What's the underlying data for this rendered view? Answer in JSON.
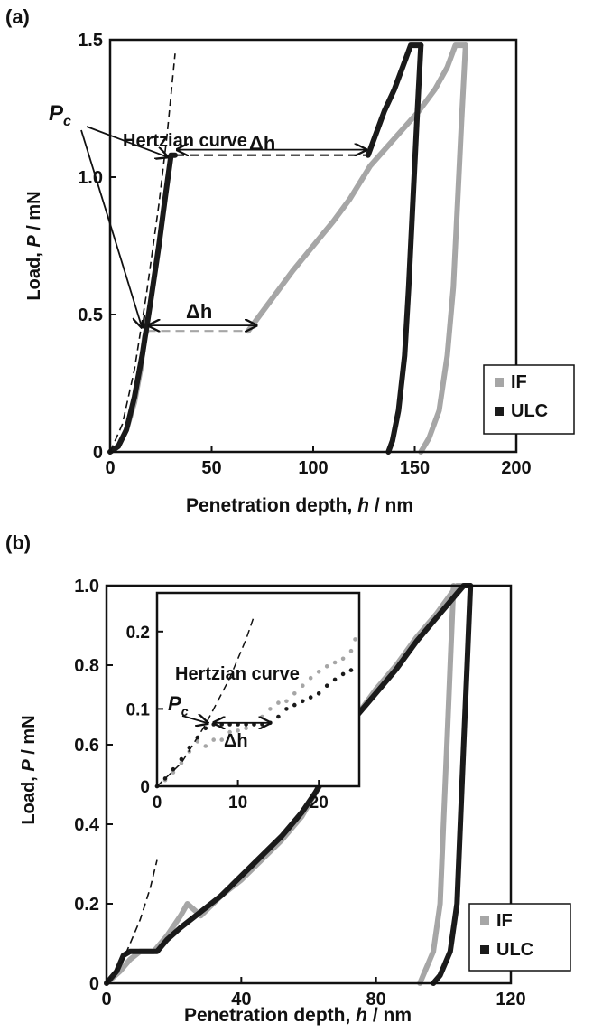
{
  "chart_data": [
    {
      "panel_label": "(a)",
      "type": "scatter",
      "xlabel_parts": [
        "Penetration depth, ",
        "h",
        " / nm"
      ],
      "ylabel_parts": [
        "Load, ",
        "P",
        " / mN"
      ],
      "xlim": [
        0,
        200
      ],
      "ylim": [
        0,
        1.5
      ],
      "x_ticks": [
        0,
        50,
        100,
        150,
        200
      ],
      "x_tick_labels": [
        "0",
        "50",
        "100",
        "150",
        "200"
      ],
      "y_ticks": [
        0,
        0.5,
        1.0,
        1.5
      ],
      "y_tick_labels": [
        "0",
        "0.5",
        "1.0",
        "1.5"
      ],
      "grid": false,
      "legend_position": "bottom-right",
      "series": [
        {
          "name": "IF",
          "color": "#a6a6a6",
          "segments": [
            [
              [
                0,
                0
              ],
              [
                4,
                0.02
              ],
              [
                8,
                0.08
              ],
              [
                12,
                0.18
              ],
              [
                15,
                0.3
              ],
              [
                17,
                0.42
              ],
              [
                18,
                0.44
              ]
            ],
            [
              [
                68,
                0.44
              ],
              [
                72,
                0.48
              ],
              [
                80,
                0.56
              ],
              [
                90,
                0.66
              ],
              [
                100,
                0.75
              ],
              [
                110,
                0.84
              ],
              [
                118,
                0.92
              ],
              [
                128,
                1.04
              ],
              [
                140,
                1.14
              ],
              [
                152,
                1.24
              ],
              [
                160,
                1.32
              ],
              [
                166,
                1.4
              ],
              [
                170,
                1.48
              ],
              [
                175,
                1.48
              ]
            ],
            [
              [
                175,
                1.48
              ],
              [
                173,
                1.2
              ],
              [
                171,
                0.9
              ],
              [
                169,
                0.6
              ],
              [
                166,
                0.35
              ],
              [
                162,
                0.15
              ],
              [
                157,
                0.05
              ],
              [
                153,
                0
              ]
            ]
          ],
          "dashed": [
            [
              [
                18,
                0.44
              ],
              [
                68,
                0.44
              ]
            ]
          ]
        },
        {
          "name": "ULC",
          "color": "#1a1a1a",
          "segments": [
            [
              [
                0,
                0
              ],
              [
                4,
                0.02
              ],
              [
                8,
                0.08
              ],
              [
                12,
                0.2
              ],
              [
                16,
                0.36
              ],
              [
                20,
                0.55
              ],
              [
                24,
                0.75
              ],
              [
                27,
                0.92
              ],
              [
                30,
                1.08
              ],
              [
                32,
                1.08
              ]
            ],
            [
              [
                127,
                1.08
              ],
              [
                131,
                1.16
              ],
              [
                135,
                1.24
              ],
              [
                140,
                1.32
              ],
              [
                145,
                1.42
              ],
              [
                148,
                1.48
              ],
              [
                153,
                1.48
              ]
            ],
            [
              [
                153,
                1.48
              ],
              [
                151,
                1.2
              ],
              [
                149,
                0.9
              ],
              [
                147,
                0.6
              ],
              [
                145,
                0.35
              ],
              [
                142,
                0.15
              ],
              [
                139,
                0.04
              ],
              [
                137,
                0
              ]
            ]
          ],
          "dashed": [
            [
              [
                32,
                1.08
              ],
              [
                127,
                1.08
              ]
            ]
          ]
        }
      ],
      "hertzian_curve": [
        [
          0,
          0
        ],
        [
          6,
          0.1
        ],
        [
          12,
          0.3
        ],
        [
          18,
          0.58
        ],
        [
          24,
          0.9
        ],
        [
          28,
          1.15
        ],
        [
          32,
          1.45
        ]
      ],
      "annotations": {
        "hertzian_label": "Hertzian curve",
        "pc_main": "P",
        "pc_sub": "c",
        "delta_h": "Δh"
      },
      "delta_h_arrows": [
        {
          "x_from": 33,
          "x_to": 126,
          "y": 1.1
        },
        {
          "x_from": 19,
          "x_to": 72,
          "y": 0.46
        }
      ],
      "pc_points": [
        [
          30,
          1.08
        ],
        [
          17,
          0.44
        ]
      ]
    },
    {
      "panel_label": "(b)",
      "type": "scatter",
      "xlabel_parts": [
        "Penetration depth, ",
        "h",
        " / nm"
      ],
      "ylabel_parts": [
        "Load, ",
        "P",
        " / mN"
      ],
      "xlim": [
        0,
        120
      ],
      "ylim": [
        0,
        1.0
      ],
      "x_ticks": [
        0,
        40,
        80,
        120
      ],
      "x_tick_labels": [
        "0",
        "40",
        "80",
        "120"
      ],
      "y_ticks": [
        0,
        0.2,
        0.4,
        0.6,
        0.8,
        1.0
      ],
      "y_tick_labels": [
        "0",
        "0.2",
        "0.4",
        "0.6",
        "0.8",
        "1.0"
      ],
      "grid": false,
      "legend_position": "bottom-right",
      "series": [
        {
          "name": "IF",
          "color": "#a6a6a6",
          "segments": [
            [
              [
                0,
                0
              ],
              [
                4,
                0.03
              ],
              [
                7,
                0.06
              ],
              [
                10,
                0.08
              ],
              [
                14,
                0.08
              ],
              [
                18,
                0.12
              ],
              [
                22,
                0.17
              ],
              [
                24,
                0.2
              ],
              [
                28,
                0.17
              ],
              [
                34,
                0.22
              ],
              [
                40,
                0.26
              ],
              [
                46,
                0.31
              ],
              [
                52,
                0.36
              ],
              [
                58,
                0.42
              ],
              [
                62,
                0.48
              ],
              [
                66,
                0.53
              ],
              [
                70,
                0.62
              ],
              [
                74,
                0.67
              ],
              [
                80,
                0.74
              ],
              [
                86,
                0.8
              ],
              [
                92,
                0.87
              ],
              [
                98,
                0.93
              ],
              [
                104,
                1.0
              ],
              [
                108,
                1.0
              ]
            ],
            [
              [
                103,
                1.0
              ],
              [
                102,
                0.8
              ],
              [
                101,
                0.6
              ],
              [
                100,
                0.4
              ],
              [
                99,
                0.2
              ],
              [
                97,
                0.08
              ],
              [
                94,
                0.02
              ],
              [
                93,
                0
              ]
            ]
          ]
        },
        {
          "name": "ULC",
          "color": "#1a1a1a",
          "segments": [
            [
              [
                0,
                0
              ],
              [
                3,
                0.03
              ],
              [
                5,
                0.07
              ],
              [
                7,
                0.08
              ],
              [
                15,
                0.08
              ],
              [
                18,
                0.11
              ],
              [
                22,
                0.14
              ],
              [
                28,
                0.18
              ],
              [
                34,
                0.22
              ],
              [
                40,
                0.27
              ],
              [
                46,
                0.32
              ],
              [
                52,
                0.37
              ],
              [
                58,
                0.43
              ],
              [
                62,
                0.48
              ],
              [
                66,
                0.54
              ],
              [
                70,
                0.62
              ],
              [
                74,
                0.67
              ],
              [
                80,
                0.73
              ],
              [
                86,
                0.79
              ],
              [
                92,
                0.86
              ],
              [
                98,
                0.92
              ],
              [
                103,
                0.97
              ],
              [
                106,
                1.0
              ],
              [
                108,
                1.0
              ]
            ],
            [
              [
                108,
                1.0
              ],
              [
                107,
                0.8
              ],
              [
                106,
                0.6
              ],
              [
                105,
                0.4
              ],
              [
                104,
                0.2
              ],
              [
                102,
                0.08
              ],
              [
                99,
                0.02
              ],
              [
                97,
                0
              ]
            ]
          ]
        }
      ],
      "hertzian_curve": [
        [
          0,
          0
        ],
        [
          5,
          0.06
        ],
        [
          10,
          0.16
        ],
        [
          13,
          0.24
        ],
        [
          15,
          0.31
        ]
      ],
      "inset": {
        "xlim": [
          0,
          25
        ],
        "ylim": [
          0,
          0.25
        ],
        "x_ticks": [
          0,
          10,
          20
        ],
        "x_tick_labels": [
          "0",
          "10",
          "20"
        ],
        "y_ticks": [
          0,
          0.1,
          0.2
        ],
        "y_tick_labels": [
          "0",
          "0.1",
          "0.2"
        ],
        "series": [
          {
            "name": "IF",
            "color": "#a6a6a6",
            "points": [
              [
                0,
                0
              ],
              [
                1,
                0.008
              ],
              [
                2,
                0.018
              ],
              [
                3,
                0.03
              ],
              [
                4,
                0.045
              ],
              [
                5,
                0.058
              ],
              [
                6,
                0.052
              ],
              [
                7,
                0.06
              ],
              [
                8,
                0.06
              ],
              [
                9,
                0.07
              ],
              [
                10,
                0.072
              ],
              [
                11,
                0.075
              ],
              [
                12,
                0.08
              ],
              [
                13,
                0.09
              ],
              [
                14,
                0.1
              ],
              [
                15,
                0.108
              ],
              [
                16,
                0.11
              ],
              [
                17,
                0.12
              ],
              [
                18,
                0.13
              ],
              [
                19,
                0.14
              ],
              [
                20,
                0.148
              ],
              [
                21,
                0.155
              ],
              [
                22,
                0.16
              ],
              [
                23,
                0.165
              ],
              [
                24,
                0.175
              ],
              [
                24.5,
                0.19
              ]
            ]
          },
          {
            "name": "ULC",
            "color": "#1a1a1a",
            "points": [
              [
                0,
                0
              ],
              [
                1,
                0.01
              ],
              [
                2,
                0.022
              ],
              [
                3,
                0.035
              ],
              [
                4,
                0.05
              ],
              [
                5,
                0.063
              ],
              [
                6,
                0.075
              ],
              [
                7,
                0.08
              ],
              [
                8,
                0.08
              ],
              [
                9,
                0.08
              ],
              [
                10,
                0.08
              ],
              [
                11,
                0.08
              ],
              [
                12,
                0.08
              ],
              [
                13,
                0.08
              ],
              [
                14,
                0.082
              ],
              [
                15,
                0.09
              ],
              [
                16,
                0.1
              ],
              [
                17,
                0.105
              ],
              [
                18,
                0.11
              ],
              [
                19,
                0.115
              ],
              [
                20,
                0.12
              ],
              [
                21,
                0.13
              ],
              [
                22,
                0.138
              ],
              [
                23,
                0.145
              ],
              [
                24,
                0.15
              ]
            ]
          }
        ],
        "hertzian_curve": [
          [
            0,
            0
          ],
          [
            3,
            0.03
          ],
          [
            6,
            0.08
          ],
          [
            9,
            0.14
          ],
          [
            11,
            0.19
          ],
          [
            12,
            0.22
          ]
        ],
        "annotations": {
          "hertzian_label": "Hertzian curve",
          "pc_main": "P",
          "pc_sub": "c",
          "delta_h": "Δh"
        },
        "delta_h_arrow": {
          "x_from": 7,
          "x_to": 14,
          "y": 0.082
        },
        "pc_point": [
          6.5,
          0.078
        ]
      }
    }
  ],
  "colors": {
    "if": "#a6a6a6",
    "ulc": "#1a1a1a",
    "axis": "#111111"
  }
}
